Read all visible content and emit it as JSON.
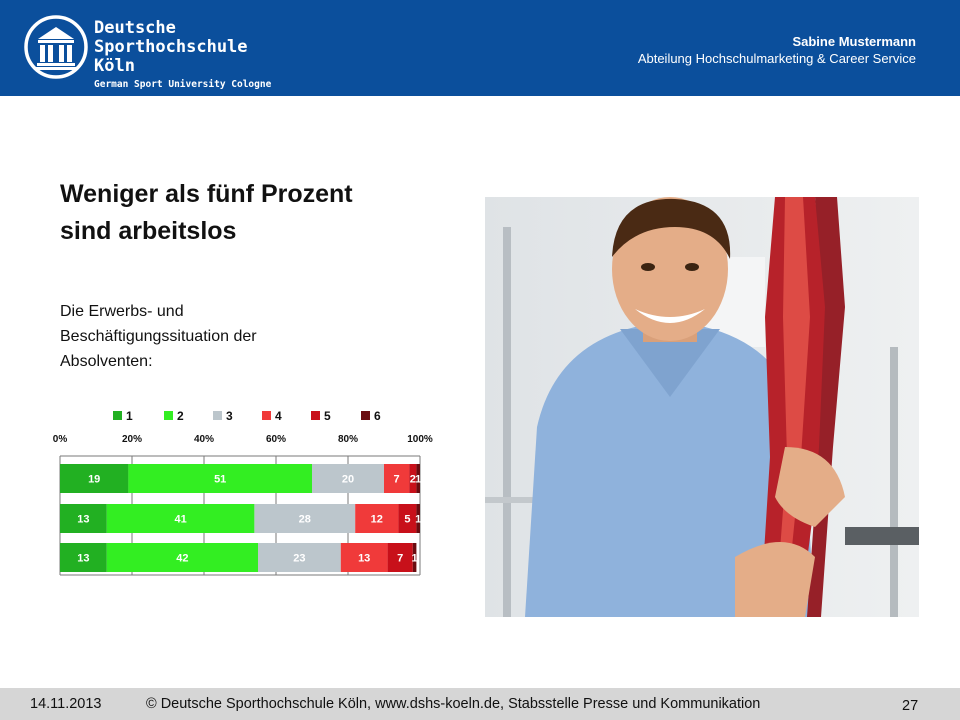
{
  "header": {
    "logo": {
      "line1": "Deutsche",
      "line2": "Sporthochschule Köln",
      "line3": "German Sport University Cologne"
    },
    "author_name": "Sabine Mustermann",
    "author_dept": "Abteilung Hochschulmarketing & Career Service"
  },
  "slide": {
    "title": "Weniger als fünf Prozent sind arbeitslos",
    "subtitle": "Die Erwerbs- und Beschäftigungssituation der Absolventen:"
  },
  "chart_data": {
    "type": "bar",
    "orientation": "horizontal",
    "stacked": true,
    "categories": [
      "",
      "",
      ""
    ],
    "x_ticks": [
      "0%",
      "20%",
      "40%",
      "60%",
      "80%",
      "100%"
    ],
    "xlim": [
      0,
      100
    ],
    "grid": true,
    "legend_position": "top",
    "series": [
      {
        "name": "1",
        "color": "#22b022",
        "values": [
          19,
          13,
          13
        ],
        "labels": [
          "19",
          "13",
          "13"
        ]
      },
      {
        "name": "2",
        "color": "#33ee22",
        "values": [
          51,
          41,
          42
        ],
        "labels": [
          "51",
          "41",
          "42"
        ]
      },
      {
        "name": "3",
        "color": "#bcc6cc",
        "values": [
          20,
          28,
          23
        ],
        "labels": [
          "20",
          "28",
          "23"
        ]
      },
      {
        "name": "4",
        "color": "#f03a3a",
        "values": [
          7,
          12,
          13
        ],
        "labels": [
          "7",
          "12",
          "13"
        ]
      },
      {
        "name": "5",
        "color": "#c8101a",
        "values": [
          2,
          5,
          7
        ],
        "labels": [
          "2",
          "5",
          "7"
        ]
      },
      {
        "name": "6",
        "color": "#6a0c10",
        "values": [
          1,
          1,
          1
        ],
        "labels": [
          "1",
          "1",
          "1"
        ]
      }
    ]
  },
  "footer": {
    "date": "14.11.2013",
    "copyright": "© Deutsche Sporthochschule Köln, www.dshs-koeln.de, Stabsstelle Presse und Kommunikation",
    "page": "27"
  },
  "icons": {
    "logo": "university-columns-icon",
    "photo": "person-with-anatomy-model-photo"
  },
  "colors": {
    "brand_blue": "#0b4f9c",
    "footer_gray": "#d6d6d6"
  }
}
